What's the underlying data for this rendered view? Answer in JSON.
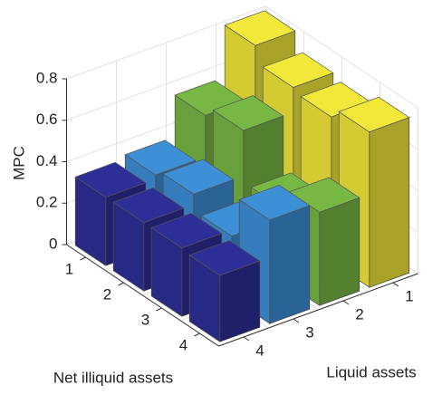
{
  "chart_data": {
    "type": "bar3d",
    "zlabel": "MPC",
    "xlabel": "Net illiquid assets",
    "ylabel": "Liquid assets",
    "x_categories": [
      "1",
      "2",
      "3",
      "4"
    ],
    "y_categories": [
      "1",
      "2",
      "3",
      "4"
    ],
    "series": [
      {
        "color": "#f2e83a",
        "values": [
          0.8,
          0.72,
          0.7,
          0.75
        ]
      },
      {
        "color": "#77b844",
        "values": [
          0.55,
          0.6,
          0.35,
          0.45
        ]
      },
      {
        "color": "#3d8fd6",
        "values": [
          0.35,
          0.38,
          0.3,
          0.5
        ]
      },
      {
        "color": "#2e2e98",
        "values": [
          0.33,
          0.33,
          0.33,
          0.32
        ]
      }
    ],
    "zlim": [
      0,
      0.8
    ],
    "zticks": [
      0,
      0.2,
      0.4,
      0.6,
      0.8
    ],
    "grid": true
  }
}
